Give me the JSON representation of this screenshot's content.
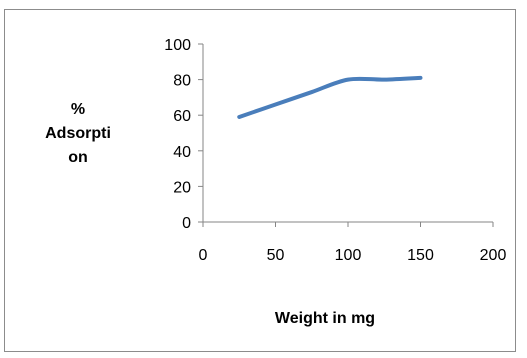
{
  "chart_data": {
    "type": "line",
    "title": "",
    "xlabel": "Weight in mg",
    "ylabel": "%\nAdsorpti\non",
    "xlim": [
      0,
      200
    ],
    "ylim": [
      0,
      100
    ],
    "x_ticks": [
      0,
      50,
      100,
      150,
      200
    ],
    "y_ticks": [
      0,
      20,
      40,
      60,
      80,
      100
    ],
    "grid": false,
    "legend": "none",
    "series": [
      {
        "color": "#4a7ebb",
        "x": [
          25,
          50,
          75,
          100,
          125,
          150
        ],
        "y": [
          59,
          66,
          73,
          80,
          80,
          81
        ]
      }
    ]
  }
}
